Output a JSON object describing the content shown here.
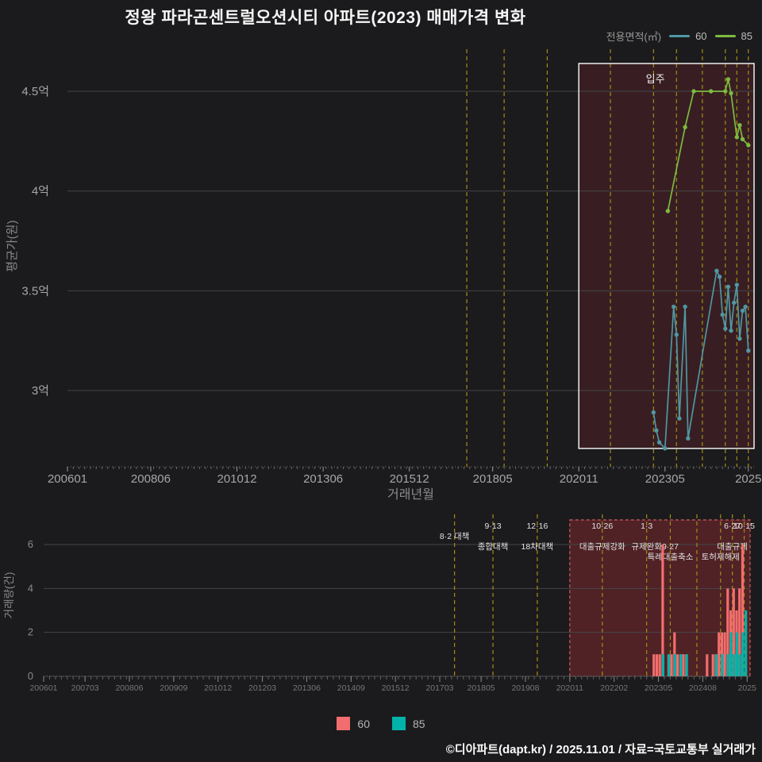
{
  "title": "정왕 파라곤센트럴오션시티 아파트(2023) 매매가격 변화",
  "legend_top": {
    "label": "전용면적(㎡)",
    "series": [
      {
        "name": "60",
        "color": "#4f97a3"
      },
      {
        "name": "85",
        "color": "#7cbb3f"
      }
    ]
  },
  "legend_bottom": {
    "series": [
      {
        "name": "60",
        "color": "#f26d6d"
      },
      {
        "name": "85",
        "color": "#00b2a9"
      }
    ]
  },
  "footer": "©디아파트(dapt.kr) / 2025.11.01 / 자료=국토교통부 실거래가",
  "chart_data": [
    {
      "type": "line",
      "title": "매매 평균가 추이",
      "xlabel": "거래년월",
      "ylabel": "평균가(원)",
      "grid": true,
      "legend_position": "top-right",
      "y_unit": "억원",
      "y_ticks": [
        {
          "value": 4.5,
          "label": "4.5억"
        },
        {
          "value": 4.0,
          "label": "4억"
        },
        {
          "value": 3.5,
          "label": "3.5억"
        },
        {
          "value": 3.0,
          "label": "3억"
        }
      ],
      "x_range": [
        "200601",
        "202512"
      ],
      "x_ticks": [
        {
          "month": "200601",
          "label": "200601"
        },
        {
          "month": "200806",
          "label": "200806"
        },
        {
          "month": "201012",
          "label": "201012"
        },
        {
          "month": "201306",
          "label": "201306"
        },
        {
          "month": "201512",
          "label": "201512"
        },
        {
          "month": "201805",
          "label": "201805"
        },
        {
          "month": "202011",
          "label": "202011"
        },
        {
          "month": "202305",
          "label": "202305"
        },
        {
          "month": "202510",
          "label": "2025"
        }
      ],
      "highlight": {
        "from": "202011",
        "to": "202512",
        "label": "입주"
      },
      "policy_lines": [
        "201708",
        "201809",
        "201912",
        "202110",
        "202301",
        "202309",
        "202406",
        "202502",
        "202506",
        "202510"
      ],
      "series": [
        {
          "name": "60",
          "color": "#4f97a3",
          "points": [
            [
              "202301",
              2.89
            ],
            [
              "202302",
              2.8
            ],
            [
              "202303",
              2.74
            ],
            [
              "202305",
              2.71
            ],
            [
              "202308",
              3.42
            ],
            [
              "202309",
              3.28
            ],
            [
              "202310",
              2.86
            ],
            [
              "202312",
              3.42
            ],
            [
              "202401",
              2.76
            ],
            [
              "202411",
              3.6
            ],
            [
              "202412",
              3.57
            ],
            [
              "202501",
              3.38
            ],
            [
              "202502",
              3.31
            ],
            [
              "202503",
              3.52
            ],
            [
              "202504",
              3.3
            ],
            [
              "202505",
              3.44
            ],
            [
              "202506",
              3.53
            ],
            [
              "202507",
              3.26
            ],
            [
              "202508",
              3.4
            ],
            [
              "202509",
              3.42
            ],
            [
              "202510",
              3.2
            ]
          ]
        },
        {
          "name": "85",
          "color": "#7cbb3f",
          "points": [
            [
              "202306",
              3.9
            ],
            [
              "202312",
              4.32
            ],
            [
              "202403",
              4.5
            ],
            [
              "202409",
              4.5
            ],
            [
              "202502",
              4.5
            ],
            [
              "202503",
              4.56
            ],
            [
              "202504",
              4.49
            ],
            [
              "202506",
              4.27
            ],
            [
              "202507",
              4.33
            ],
            [
              "202508",
              4.26
            ],
            [
              "202510",
              4.23
            ]
          ]
        }
      ]
    },
    {
      "type": "bar",
      "xlabel": "",
      "ylabel": "거래량(건)",
      "grid": true,
      "y_ticks": [
        0,
        2,
        4,
        6
      ],
      "x_range": [
        "200601",
        "202512"
      ],
      "x_ticks": [
        {
          "month": "200601",
          "label": "200601"
        },
        {
          "month": "200703",
          "label": "200703"
        },
        {
          "month": "200806",
          "label": "200806"
        },
        {
          "month": "200909",
          "label": "200909"
        },
        {
          "month": "201012",
          "label": "201012"
        },
        {
          "month": "201203",
          "label": "201203"
        },
        {
          "month": "201306",
          "label": "201306"
        },
        {
          "month": "201409",
          "label": "201409"
        },
        {
          "month": "201512",
          "label": "201512"
        },
        {
          "month": "201703",
          "label": "201703"
        },
        {
          "month": "201805",
          "label": "201805"
        },
        {
          "month": "201908",
          "label": "201908"
        },
        {
          "month": "202011",
          "label": "202011"
        },
        {
          "month": "202202",
          "label": "202202"
        },
        {
          "month": "202305",
          "label": "202305"
        },
        {
          "month": "202408",
          "label": "202408"
        },
        {
          "month": "202511",
          "label": "2025"
        }
      ],
      "highlight": {
        "from": "202011",
        "to": "202512"
      },
      "policy_lines": [
        "201708",
        "201809",
        "201912",
        "202110",
        "202301",
        "202309",
        "202406",
        "202502",
        "202506",
        "202510"
      ],
      "annotations": [
        {
          "month": "201708",
          "lines": [
            {
              "text": "8·2 대책",
              "row": 2
            }
          ]
        },
        {
          "month": "201809",
          "lines": [
            {
              "text": "9·13",
              "row": 1
            },
            {
              "text": "종합대책",
              "row": 3
            }
          ]
        },
        {
          "month": "201912",
          "lines": [
            {
              "text": "12·16",
              "row": 1
            },
            {
              "text": "18차대책",
              "row": 3
            }
          ]
        },
        {
          "month": "202110",
          "lines": [
            {
              "text": "10·26",
              "row": 1
            },
            {
              "text": "대출규제강화",
              "row": 3
            }
          ]
        },
        {
          "month": "202301",
          "lines": [
            {
              "text": "1·3",
              "row": 1
            },
            {
              "text": "규제완화",
              "row": 3
            }
          ]
        },
        {
          "month": "202309",
          "lines": [
            {
              "text": "9·27",
              "row": 3
            },
            {
              "text": "특례대출축소",
              "row": 4
            }
          ]
        },
        {
          "month": "202502",
          "lines": [
            {
              "text": "토허제해제",
              "row": 4
            }
          ]
        },
        {
          "month": "202506",
          "lines": [
            {
              "text": "6·27",
              "row": 1
            },
            {
              "text": "대출규제",
              "row": 3
            }
          ]
        },
        {
          "month": "202510",
          "lines": [
            {
              "text": "10·15",
              "row": 1
            }
          ]
        }
      ],
      "series": [
        {
          "name": "60",
          "color": "#f26d6d",
          "bars": [
            [
              "202304",
              1
            ],
            [
              "202305",
              1
            ],
            [
              "202306",
              1
            ],
            [
              "202307",
              6
            ],
            [
              "202309",
              1
            ],
            [
              "202310",
              1
            ],
            [
              "202311",
              2
            ],
            [
              "202312",
              1
            ],
            [
              "202401",
              1
            ],
            [
              "202402",
              1
            ],
            [
              "202403",
              1
            ],
            [
              "202410",
              1
            ],
            [
              "202412",
              1
            ],
            [
              "202501",
              1
            ],
            [
              "202502",
              2
            ],
            [
              "202503",
              2
            ],
            [
              "202504",
              2
            ],
            [
              "202505",
              4
            ],
            [
              "202506",
              3
            ],
            [
              "202507",
              4
            ],
            [
              "202508",
              3
            ],
            [
              "202509",
              4
            ],
            [
              "202510",
              6
            ]
          ]
        },
        {
          "name": "85",
          "color": "#00b2a9",
          "bars": [
            [
              "202306",
              1
            ],
            [
              "202308",
              1
            ],
            [
              "202310",
              1
            ],
            [
              "202312",
              1
            ],
            [
              "202402",
              1
            ],
            [
              "202412",
              1
            ],
            [
              "202502",
              1
            ],
            [
              "202504",
              1
            ],
            [
              "202505",
              2
            ],
            [
              "202506",
              1
            ],
            [
              "202507",
              2
            ],
            [
              "202508",
              1
            ],
            [
              "202509",
              2
            ],
            [
              "202510",
              3
            ]
          ]
        }
      ]
    }
  ]
}
